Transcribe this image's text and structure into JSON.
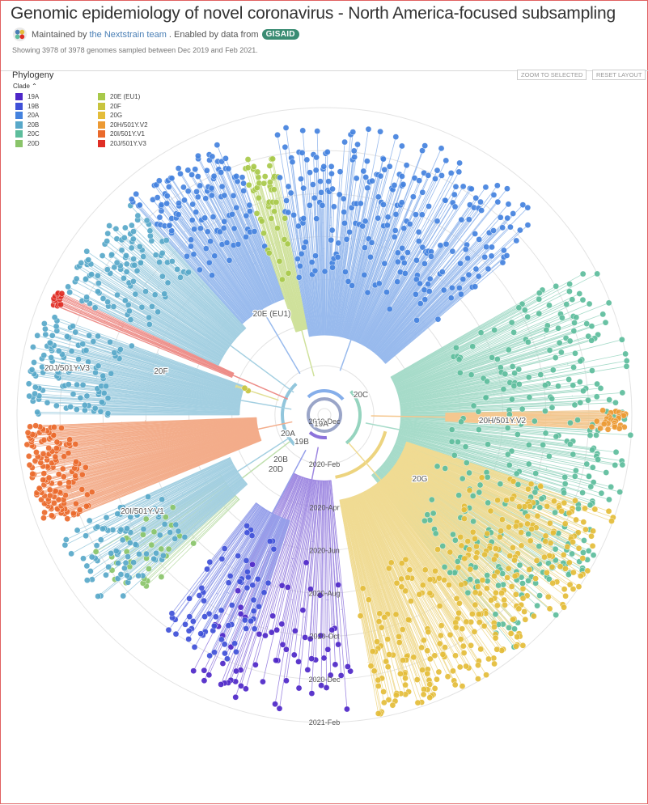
{
  "header": {
    "title": "Genomic epidemiology of novel coronavirus - North America-focused subsampling",
    "maintained_prefix": "Maintained by",
    "team_link": "the Nextstrain team",
    "enabled_text": ". Enabled by data from",
    "gisaid_logo": "GISAID",
    "showing": "Showing 3978 of 3978 genomes sampled between Dec 2019 and Feb 2021."
  },
  "panel": {
    "title": "Phylogeny",
    "legend_title": "Clade",
    "zoom_button": "ZOOM TO SELECTED",
    "reset_button": "RESET LAYOUT"
  },
  "legend": [
    {
      "label": "19A",
      "color": "#4e27c8"
    },
    {
      "label": "19B",
      "color": "#3f50d8"
    },
    {
      "label": "20A",
      "color": "#4482de"
    },
    {
      "label": "20B",
      "color": "#58a8c9"
    },
    {
      "label": "20C",
      "color": "#5dbd9c"
    },
    {
      "label": "20D",
      "color": "#8ac46a"
    },
    {
      "label": "20E (EU1)",
      "color": "#a8c94a"
    },
    {
      "label": "20F",
      "color": "#c8c43e"
    },
    {
      "label": "20G",
      "color": "#e4bd3a"
    },
    {
      "label": "20H/501Y.V2",
      "color": "#ec9a34"
    },
    {
      "label": "20I/501Y.V1",
      "color": "#ea6a2c"
    },
    {
      "label": "20J/501Y.V3",
      "color": "#df2e25"
    }
  ],
  "time_axis": [
    "2019-Dec",
    "2020-Feb",
    "2020-Apr",
    "2020-Jun",
    "2020-Aug",
    "2020-Oct",
    "2020-Dec",
    "2021-Feb"
  ],
  "clade_labels": [
    "19A",
    "19B",
    "20A",
    "20B",
    "20C",
    "20D",
    "20E (EU1)",
    "20F",
    "20G",
    "20H/501Y.V2",
    "20I/501Y.V1",
    "20J/501Y.V3"
  ]
}
